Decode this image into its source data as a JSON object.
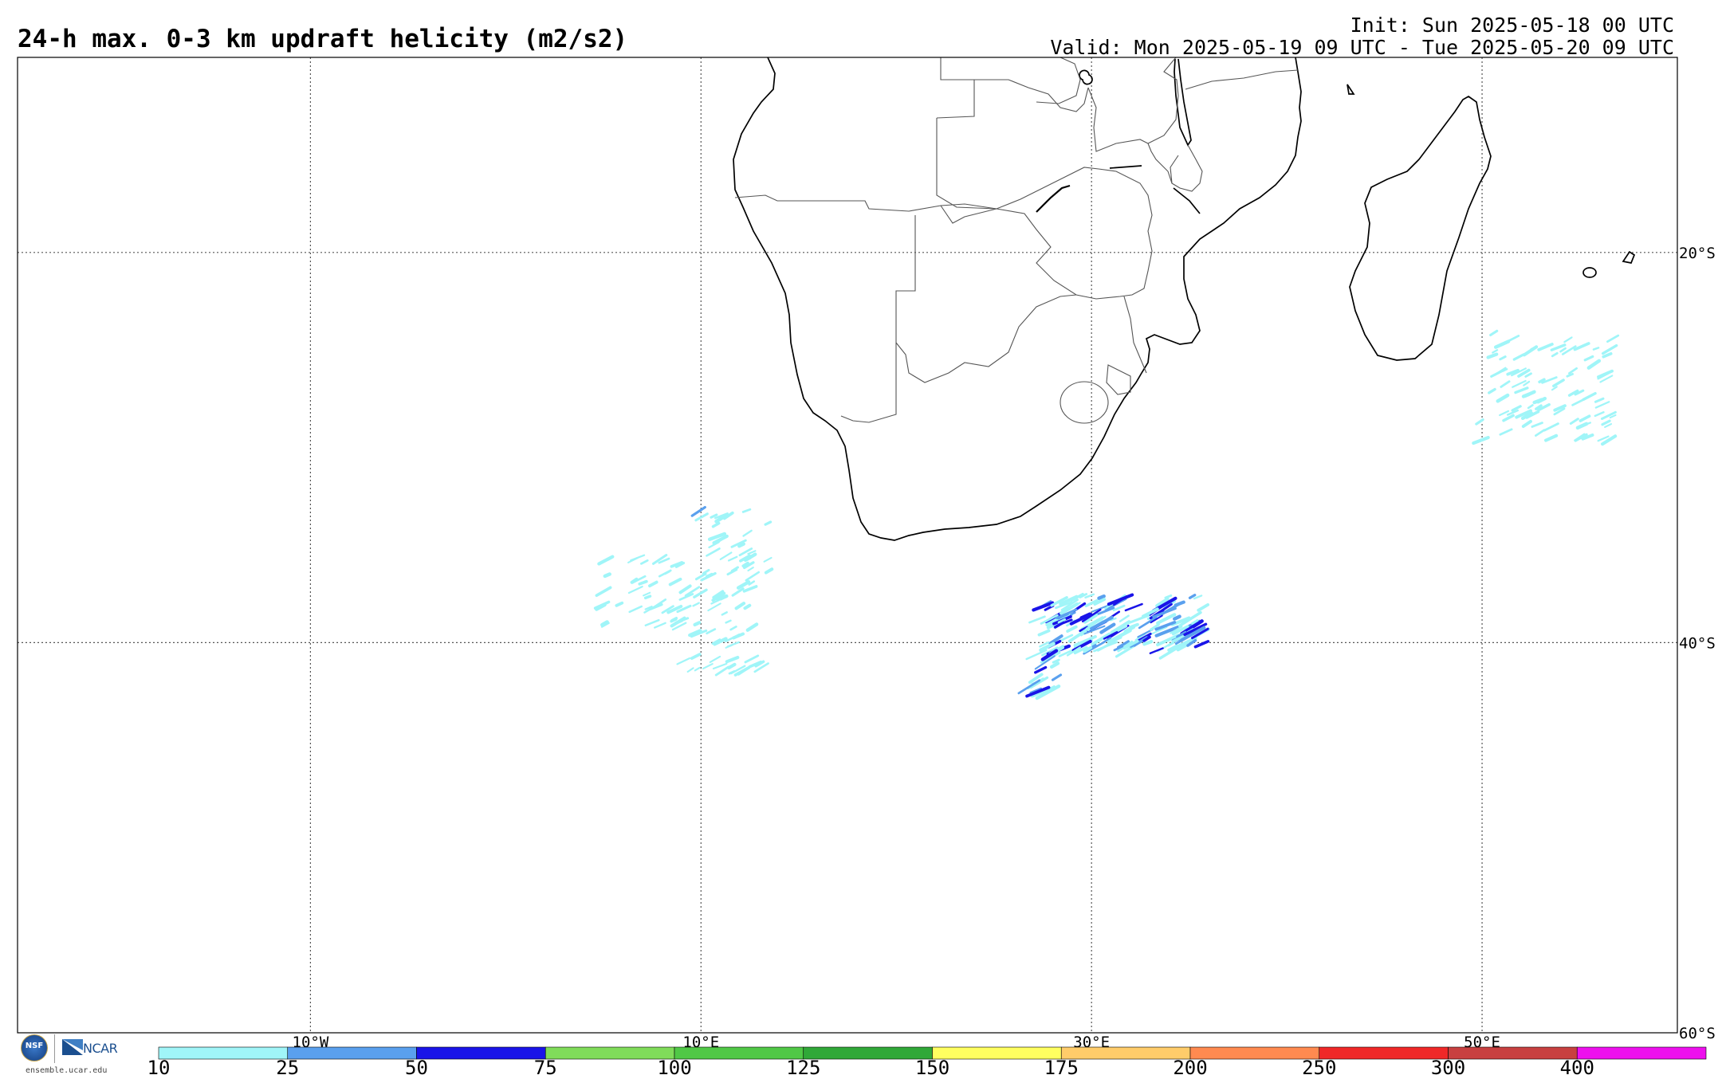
{
  "header": {
    "title": "24-h max. 0-3 km updraft helicity (m2/s2)",
    "init": "Init: Sun 2025-05-18 00 UTC",
    "valid": "Valid: Mon 2025-05-19 09 UTC - Tue 2025-05-20 09 UTC"
  },
  "map": {
    "projection": "cylindrical equidistant",
    "lon_range": [
      -25,
      60
    ],
    "lat_range": [
      -60,
      -10
    ],
    "gridlines": "dotted",
    "lon_labels": [
      {
        "lon": -10,
        "text": "10°W"
      },
      {
        "lon": 10,
        "text": "10°E"
      },
      {
        "lon": 30,
        "text": "30°E"
      },
      {
        "lon": 50,
        "text": "50°E"
      }
    ],
    "lat_labels": [
      {
        "lat": -20,
        "text": "20°S"
      },
      {
        "lat": -40,
        "text": "40°S"
      },
      {
        "lat": -60,
        "text": "60°S"
      }
    ]
  },
  "colorbar": {
    "labels": [
      "10",
      "25",
      "50",
      "75",
      "100",
      "125",
      "150",
      "175",
      "200",
      "250",
      "300",
      "400"
    ],
    "colors": [
      "#a0f5f8",
      "#5aa0ee",
      "#1a14e8",
      "#80dc5a",
      "#50c846",
      "#30a838",
      "#ffff60",
      "#ffcc6a",
      "#ff8a50",
      "#f02828",
      "#c84040",
      "#ee10ee"
    ]
  },
  "logo": {
    "nsf_text": "NSF",
    "ncar_text": "NCAR",
    "url": "ensemble.ucar.edu"
  },
  "chart_data": {
    "type": "heatmap",
    "title": "24-h max. 0-3 km updraft helicity (m2/s2)",
    "description_units": "m2/s2",
    "features": [
      {
        "lon_range": [
          27.5,
          36
        ],
        "lat_range": [
          -37.5,
          -40.3
        ],
        "max_bin": "50"
      },
      {
        "lon_range": [
          27.3,
          28.5
        ],
        "lat_range": [
          -40.3,
          -42.5
        ],
        "max_bin": "50"
      },
      {
        "lon_range": [
          10,
          14
        ],
        "lat_range": [
          -33,
          -36.5
        ],
        "max_bin": "25"
      },
      {
        "lon_range": [
          5,
          13
        ],
        "lat_range": [
          -35.5,
          -39
        ],
        "max_bin": "10"
      },
      {
        "lon_range": [
          9,
          14
        ],
        "lat_range": [
          -39,
          -41.5
        ],
        "max_bin": "10"
      },
      {
        "lon_range": [
          50,
          57
        ],
        "lat_range": [
          -24,
          -29.5
        ],
        "max_bin": "10"
      }
    ]
  }
}
